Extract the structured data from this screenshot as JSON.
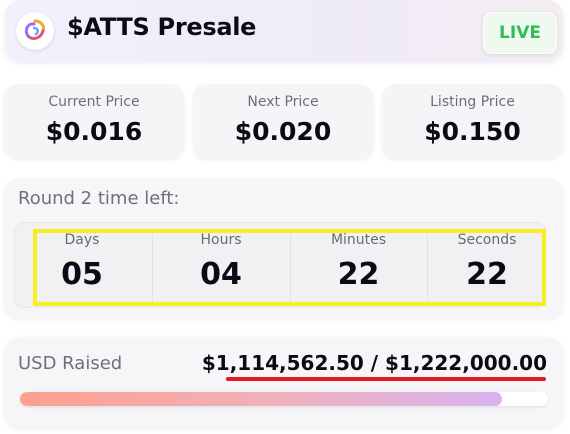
{
  "header": {
    "title": "$ATTS Presale",
    "status_badge": "LIVE",
    "logo_icon": "swirl-logo-icon"
  },
  "prices": [
    {
      "label": "Current Price",
      "value": "$0.016"
    },
    {
      "label": "Next Price",
      "value": "$0.020"
    },
    {
      "label": "Listing Price",
      "value": "$0.150"
    }
  ],
  "round": {
    "label": "Round 2 time left:",
    "countdown": [
      {
        "label": "Days",
        "value": "05"
      },
      {
        "label": "Hours",
        "value": "04"
      },
      {
        "label": "Minutes",
        "value": "22"
      },
      {
        "label": "Seconds",
        "value": "22"
      }
    ]
  },
  "raised": {
    "label": "USD Raised",
    "value": "$1,114,562.50 / $1,222,000.00",
    "progress_fraction": 0.912
  },
  "colors": {
    "live_green": "#2fbd55",
    "highlight_yellow": "#f7ee25",
    "underline_red": "#e41b23"
  }
}
